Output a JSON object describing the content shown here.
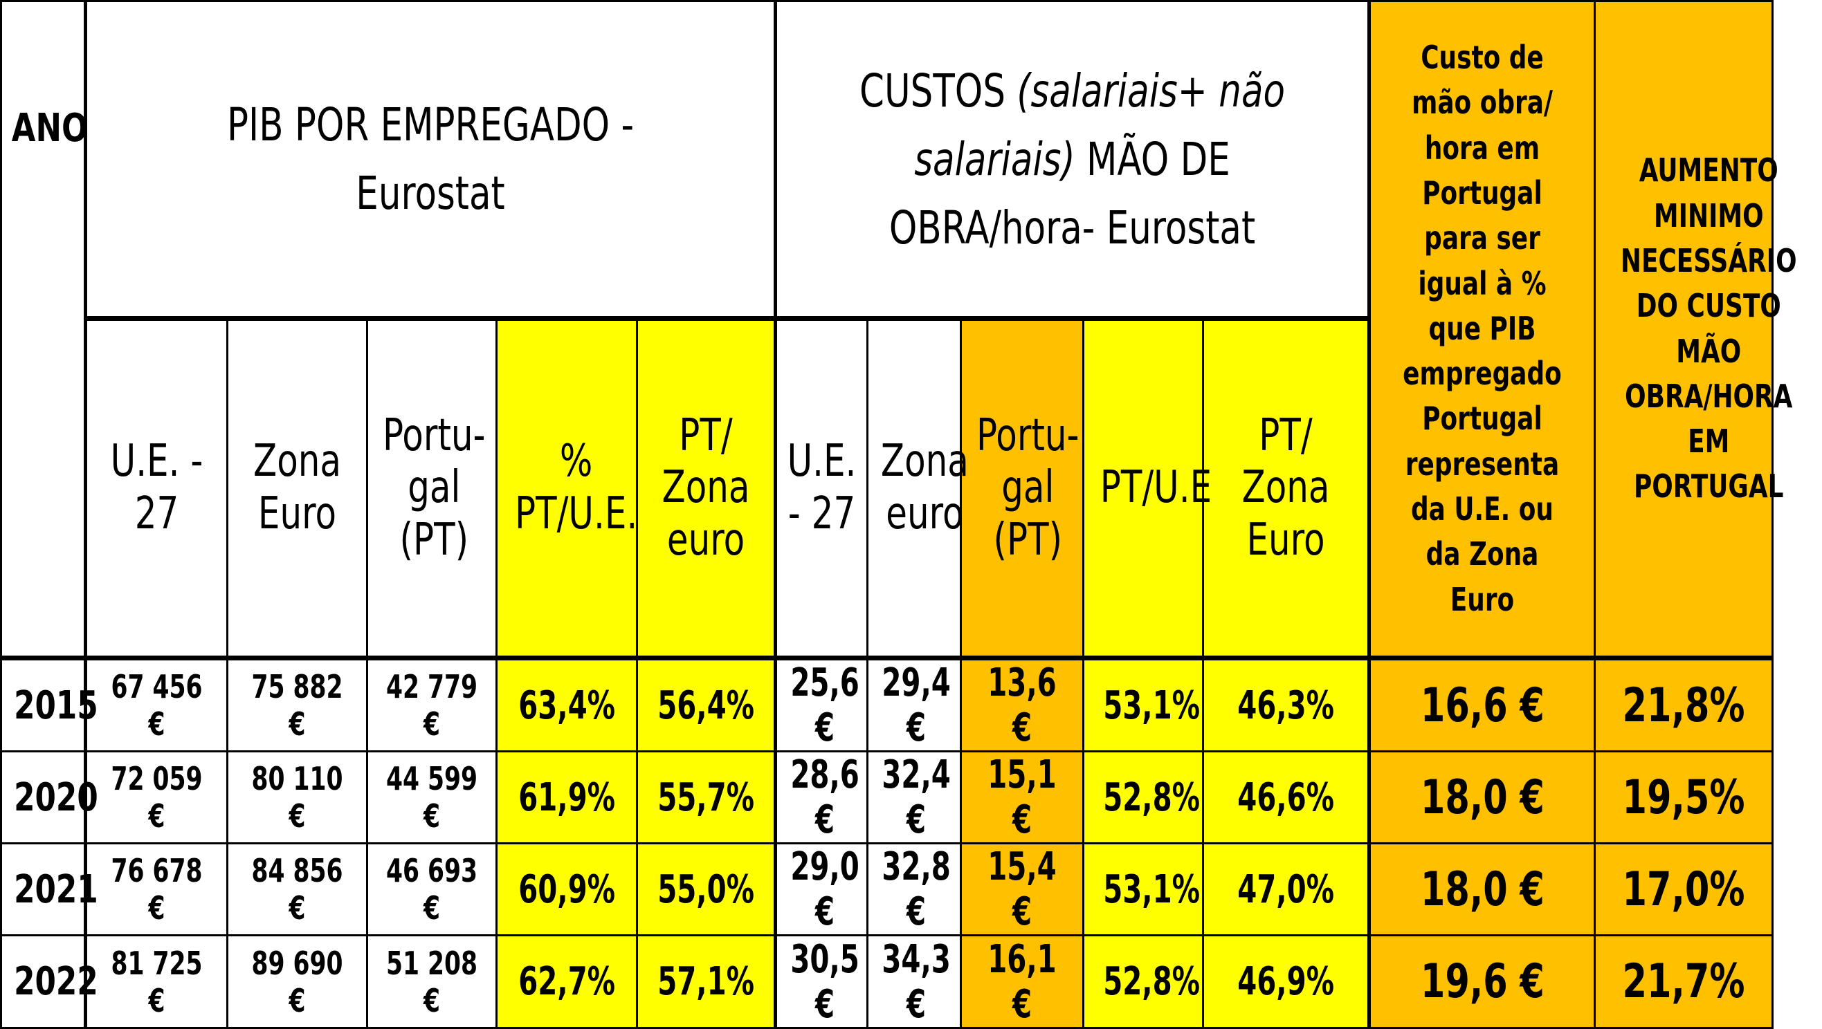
{
  "header": {
    "ano": "ANO",
    "pib_group": "PIB POR EMPREGADO - Eurostat",
    "custos_group_pre": "CUSTOS ",
    "custos_group_italic": "(salariais+ não salariais)",
    "custos_group_post": " MÃO DE OBRA/hora- Eurostat",
    "note_custo": "Custo de mão obra/ hora em Portugal para ser igual à % que PIB empregado Portugal representa da U.E. ou da Zona Euro",
    "note_aumento": "AUMENTO MINIMO NECESSÁRIO DO CUSTO MÃO OBRA/HORA EM PORTUGAL",
    "pib_cols": [
      "U.E. - 27",
      "Zona Euro",
      "Portu-gal (PT)",
      "% PT/U.E.",
      "PT/ Zona euro"
    ],
    "custos_cols": [
      "U.E. - 27",
      "Zona euro",
      "Portu-gal (PT)",
      "PT/U.E",
      "PT/ Zona Euro"
    ]
  },
  "rows": [
    {
      "ano": "2015",
      "pib_ue": "67 456 €",
      "pib_ze": "75 882 €",
      "pib_pt": "42 779 €",
      "pib_pct_ue": "63,4%",
      "pib_pct_ze": "56,4%",
      "c_ue": "25,6 €",
      "c_ze": "29,4 €",
      "c_pt": "13,6 €",
      "c_pct_ue": "53,1%",
      "c_pct_ze": "46,3%",
      "custo_igual": "16,6 €",
      "aumento": "21,8%"
    },
    {
      "ano": "2020",
      "pib_ue": "72 059 €",
      "pib_ze": "80 110 €",
      "pib_pt": "44 599 €",
      "pib_pct_ue": "61,9%",
      "pib_pct_ze": "55,7%",
      "c_ue": "28,6 €",
      "c_ze": "32,4 €",
      "c_pt": "15,1 €",
      "c_pct_ue": "52,8%",
      "c_pct_ze": "46,6%",
      "custo_igual": "18,0 €",
      "aumento": "19,5%"
    },
    {
      "ano": "2021",
      "pib_ue": "76 678 €",
      "pib_ze": "84 856 €",
      "pib_pt": "46 693 €",
      "pib_pct_ue": "60,9%",
      "pib_pct_ze": "55,0%",
      "c_ue": "29,0 €",
      "c_ze": "32,8 €",
      "c_pt": "15,4 €",
      "c_pct_ue": "53,1%",
      "c_pct_ze": "47,0%",
      "custo_igual": "18,0 €",
      "aumento": "17,0%"
    },
    {
      "ano": "2022",
      "pib_ue": "81 725 €",
      "pib_ze": "89 690 €",
      "pib_pt": "51 208 €",
      "pib_pct_ue": "62,7%",
      "pib_pct_ze": "57,1%",
      "c_ue": "30,5 €",
      "c_ze": "34,3 €",
      "c_pt": "16,1 €",
      "c_pct_ue": "52,8%",
      "c_pct_ze": "46,9%",
      "custo_igual": "19,6 €",
      "aumento": "21,7%"
    }
  ],
  "colors": {
    "yellow": "#ffff00",
    "orange": "#ffc000"
  }
}
